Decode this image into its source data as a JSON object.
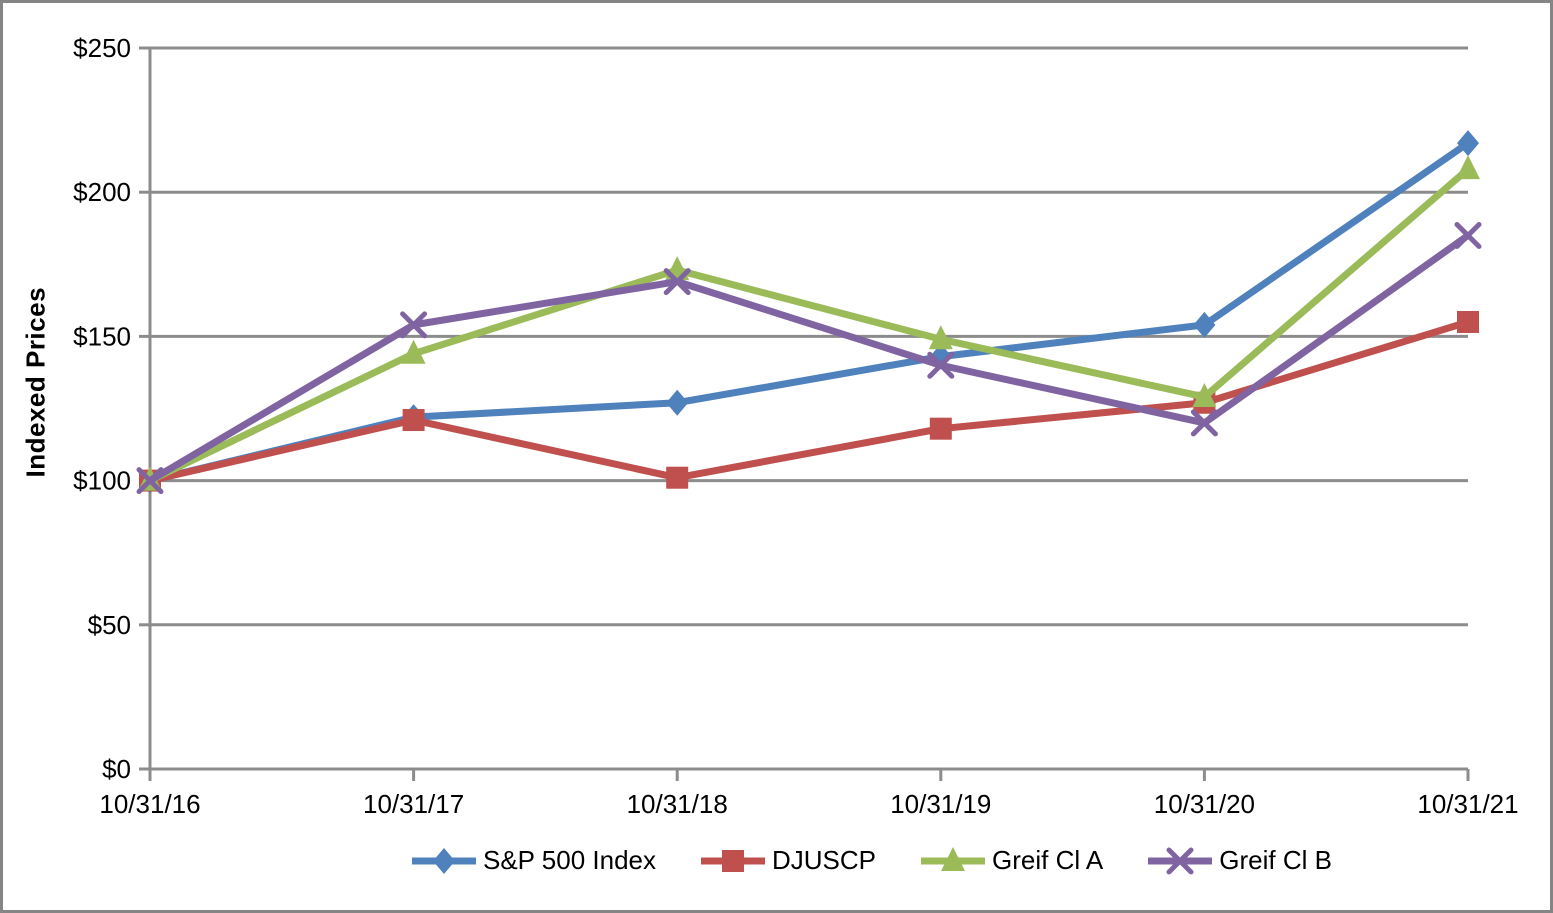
{
  "chart_data": {
    "type": "line",
    "title": "",
    "ylabel": "Indexed Prices",
    "xlabel": "",
    "x_labels": [
      "10/31/16",
      "10/31/17",
      "10/31/18",
      "10/31/19",
      "10/31/20",
      "10/31/21"
    ],
    "y_ticks": [
      "$0",
      "$50",
      "$100",
      "$150",
      "$200",
      "$250"
    ],
    "y_tick_values": [
      0,
      50,
      100,
      150,
      200,
      250
    ],
    "ylim": [
      0,
      250
    ],
    "grid": true,
    "legend_position": "bottom",
    "series": [
      {
        "name": "S&P 500 Index",
        "color": "#4F81BD",
        "marker": "diamond",
        "values": [
          100,
          122,
          127,
          143,
          154,
          217
        ]
      },
      {
        "name": "DJUSCP",
        "color": "#C0504D",
        "marker": "square",
        "values": [
          100,
          121,
          101,
          118,
          127,
          155
        ]
      },
      {
        "name": "Greif Cl A",
        "color": "#9BBB59",
        "marker": "triangle",
        "values": [
          100,
          144,
          173,
          149,
          129,
          208
        ]
      },
      {
        "name": "Greif Cl B",
        "color": "#8064A2",
        "marker": "x",
        "values": [
          100,
          154,
          169,
          140,
          120,
          185
        ]
      }
    ],
    "colors": {
      "gridline": "#8C8C8C",
      "axis": "#8C8C8C",
      "frame_border": "#858585",
      "text": "#000000",
      "background": "#FFFFFF"
    }
  }
}
